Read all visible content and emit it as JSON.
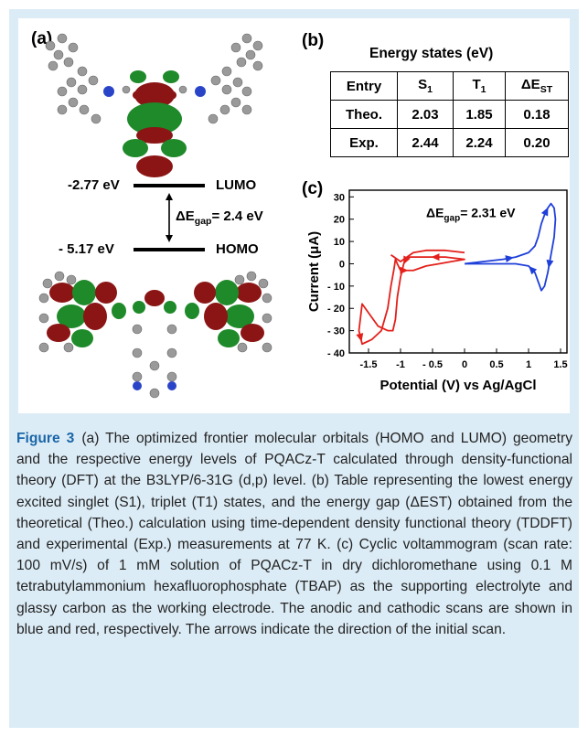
{
  "panels": {
    "a_label": "(a)",
    "b_label": "(b)",
    "c_label": "(c)"
  },
  "energy_diagram": {
    "lumo_value": "-2.77 eV",
    "lumo_label": "LUMO",
    "homo_value": "- 5.17 eV",
    "homo_label": "HOMO",
    "gap_prefix": "ΔE",
    "gap_sub": "gap",
    "gap_value": "= 2.4 eV"
  },
  "table": {
    "title": "Energy states (eV)",
    "headers": [
      "Entry",
      "S",
      "T",
      "ΔE"
    ],
    "header_subs": [
      "",
      "1",
      "1",
      "ST"
    ],
    "rows": [
      [
        "Theo.",
        "2.03",
        "1.85",
        "0.18"
      ],
      [
        "Exp.",
        "2.44",
        "2.24",
        "0.20"
      ]
    ]
  },
  "chart_data": {
    "type": "line",
    "xlabel": "Potential (V) vs Ag/AgCl",
    "ylabel": "Current (μA)",
    "annotation_prefix": "ΔE",
    "annotation_sub": "gap",
    "annotation_value": "= 2.31 eV",
    "xlim": [
      -1.8,
      1.6
    ],
    "ylim": [
      -40,
      33
    ],
    "xticks": [
      -1.5,
      -1,
      -0.5,
      0,
      0.5,
      1,
      1.5
    ],
    "xtick_labels": [
      "-1.5",
      "-1",
      "- 0.5",
      "0",
      "0.5",
      "1",
      "1.5"
    ],
    "yticks": [
      -40,
      -30,
      -20,
      -10,
      0,
      10,
      20,
      30
    ],
    "ytick_labels": [
      "- 40",
      "- 30",
      "- 20",
      "- 10",
      "0",
      "10",
      "20",
      "30"
    ],
    "series": [
      {
        "color": "#e3201b",
        "x": [
          0,
          -0.3,
          -0.6,
          -0.8,
          -0.9,
          -0.95,
          -1.0,
          -1.05,
          -1.08,
          -1.12,
          -1.2,
          -1.35,
          -1.5,
          -1.6,
          -1.65,
          -1.6,
          -1.45,
          -1.3,
          -1.2,
          -1.15,
          -1.1,
          -1.08,
          -1.05,
          -1.0,
          -0.9,
          -0.8,
          -0.6,
          -0.4,
          -0.2,
          0,
          0,
          -0.3,
          -0.6,
          -0.85,
          -0.95,
          -1.0,
          -1.05,
          -1.1,
          -1.15
        ],
        "y": [
          5,
          6,
          6,
          5,
          3,
          0,
          -6,
          -15,
          -25,
          -30,
          -30,
          -28,
          -22,
          -18,
          -30,
          -36,
          -34,
          -30,
          -20,
          -10,
          -2,
          2,
          0,
          -3,
          -3,
          -3,
          -1,
          0,
          1,
          2,
          2,
          3,
          3,
          3,
          2,
          1,
          2,
          3,
          4
        ]
      },
      {
        "color": "#1f3fd9",
        "x": [
          0,
          0.3,
          0.6,
          0.8,
          1.0,
          1.1,
          1.15,
          1.2,
          1.25,
          1.3,
          1.35,
          1.4,
          1.42,
          1.4,
          1.35,
          1.3,
          1.25,
          1.2,
          1.15,
          1.1,
          1.0,
          0.8,
          0.5,
          0.2,
          0
        ],
        "y": [
          0,
          1,
          2,
          3,
          5,
          8,
          12,
          18,
          22,
          25,
          27,
          25,
          20,
          12,
          4,
          -4,
          -10,
          -12,
          -8,
          -4,
          -1,
          0,
          0,
          0,
          0
        ]
      }
    ]
  },
  "caption": {
    "label": "Figure 3",
    "text": "(a) The optimized frontier molecular orbitals (HOMO and LUMO) geometry and the respective energy levels of PQACz-T calculated through density-functional theory (DFT) at the B3LYP/6-31G (d,p) level. (b) Table representing the lowest energy excited singlet (S1), triplet (T1) states, and the energy gap (ΔEST) obtained from the theoretical (Theo.) calculation using time-dependent density functional theory (TDDFT) and experimental (Exp.) measurements at 77 K. (c) Cyclic voltammogram (scan rate: 100 mV/s) of 1 mM solution of PQACz-T in dry dichloromethane using 0.1 M tetrabutylammonium hexafluorophosphate (TBAP) as the supporting electrolyte and glassy carbon as the working electrode. The anodic and cathodic scans are shown in blue and red, respectively. The arrows indicate the direction of the initial scan."
  }
}
